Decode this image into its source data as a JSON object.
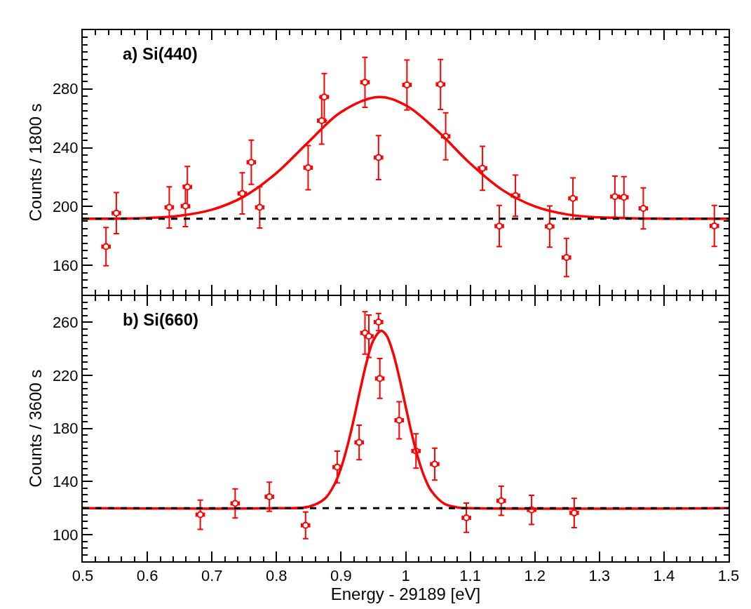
{
  "chart_data": [
    {
      "type": "scatter",
      "title": "a) Si(440)",
      "ylabel": "Counts / 1800 s",
      "xlim": [
        0.5,
        1.5
      ],
      "xticks": [
        0.5,
        0.6,
        0.7,
        0.8,
        0.9,
        1,
        1.1,
        1.2,
        1.3,
        1.4,
        1.5
      ],
      "ylim": [
        140,
        320
      ],
      "yticks": [
        160,
        200,
        240,
        280
      ],
      "tick_labels": "y",
      "series": [
        {
          "marker": "circle",
          "color": "#ff0000",
          "x": [
            0.536,
            0.552,
            0.634,
            0.659,
            0.662,
            0.747,
            0.761,
            0.774,
            0.849,
            0.87,
            0.874,
            0.937,
            0.958,
            1.002,
            1.054,
            1.062,
            1.119,
            1.145,
            1.17,
            1.223,
            1.249,
            1.259,
            1.324,
            1.338,
            1.368,
            1.478
          ],
          "values": [
            172.7,
            195.5,
            199.4,
            200.3,
            213.3,
            208.9,
            230.1,
            199.4,
            226.4,
            258.4,
            274.5,
            284.5,
            233.3,
            282.7,
            283.1,
            247.8,
            226.0,
            186.7,
            207.4,
            186.4,
            165.3,
            205.5,
            206.7,
            206.3,
            198.7,
            186.8
          ],
          "errors": [
            13,
            14,
            14,
            14,
            14,
            14,
            15,
            14,
            15,
            16,
            16,
            17,
            15,
            17,
            17,
            16,
            15,
            14,
            14,
            14,
            13,
            14,
            14,
            14,
            14,
            14
          ],
          "xerrors": [
            0.006,
            0.006,
            0.006,
            0.006,
            0.006,
            0.006,
            0.006,
            0.006,
            0.006,
            0.006,
            0.006,
            0.006,
            0.006,
            0.006,
            0.006,
            0.006,
            0.006,
            0.006,
            0.006,
            0.006,
            0.006,
            0.006,
            0.006,
            0.006,
            0.006,
            0.006
          ]
        },
        {
          "type": "line",
          "color": "#ff0000",
          "line_style": "solid",
          "x": [
            0.5,
            0.6,
            0.65,
            0.7,
            0.75,
            0.8,
            0.85,
            0.9,
            0.958,
            1.0,
            1.05,
            1.1,
            1.15,
            1.2,
            1.25,
            1.3,
            1.4,
            1.5
          ],
          "values": [
            191.7,
            192.2,
            193.7,
            197.8,
            206.9,
            222.8,
            244.1,
            264.3,
            274.5,
            268.9,
            251.1,
            229.3,
            211.2,
            200.1,
            194.6,
            192.6,
            191.7,
            191.7
          ]
        }
      ],
      "ref_lines": [
        {
          "axis": "y",
          "value": 191.7,
          "color": "#000000",
          "line_style": "dashed"
        }
      ]
    },
    {
      "type": "scatter",
      "title": "b) Si(660)",
      "xlabel": "Energy - 29189 [eV]",
      "ylabel": "Counts / 3600 s",
      "xlim": [
        0.5,
        1.5
      ],
      "xticks": [
        0.5,
        0.6,
        0.7,
        0.8,
        0.9,
        1,
        1.1,
        1.2,
        1.3,
        1.4,
        1.5
      ],
      "ylim": [
        80,
        280
      ],
      "yticks": [
        100,
        140,
        180,
        220,
        260
      ],
      "series": [
        {
          "marker": "circle",
          "color": "#ff0000",
          "x": [
            0.682,
            0.736,
            0.789,
            0.845,
            0.894,
            0.928,
            0.937,
            0.943,
            0.958,
            0.96,
            0.99,
            1.016,
            1.045,
            1.094,
            1.148,
            1.195,
            1.261
          ],
          "values": [
            115.1,
            123.6,
            128.6,
            107.1,
            151.0,
            169.5,
            252.0,
            249.5,
            260.2,
            217.7,
            186.2,
            163.1,
            153.2,
            112.8,
            125.6,
            118.7,
            116.4
          ],
          "errors": [
            11,
            11,
            11,
            10,
            12,
            13,
            16,
            16,
            6.5,
            15,
            14,
            13,
            12,
            11,
            11,
            11,
            11
          ],
          "xerrors": [
            0.006,
            0.006,
            0.006,
            0.006,
            0.006,
            0.006,
            0.006,
            0.006,
            0.006,
            0.006,
            0.006,
            0.006,
            0.006,
            0.006,
            0.006,
            0.006,
            0.006
          ]
        },
        {
          "type": "line",
          "color": "#ff0000",
          "line_style": "solid",
          "x": [
            0.5,
            0.8,
            0.85,
            0.875,
            0.89,
            0.9,
            0.91,
            0.92,
            0.93,
            0.94,
            0.95,
            0.962,
            0.97,
            0.98,
            0.99,
            1.0,
            1.01,
            1.02,
            1.03,
            1.04,
            1.06,
            1.08,
            1.1,
            1.5
          ],
          "values": [
            120,
            120,
            121.1,
            127.2,
            138.1,
            150.3,
            167.1,
            187.6,
            210.0,
            230.9,
            246.4,
            253.6,
            250.4,
            237.8,
            218.8,
            196.6,
            174.9,
            156.5,
            142.4,
            132.8,
            123.3,
            120.6,
            120,
            120
          ]
        }
      ],
      "ref_lines": [
        {
          "axis": "y",
          "value": 120,
          "color": "#000000",
          "line_style": "dashed"
        }
      ]
    }
  ]
}
